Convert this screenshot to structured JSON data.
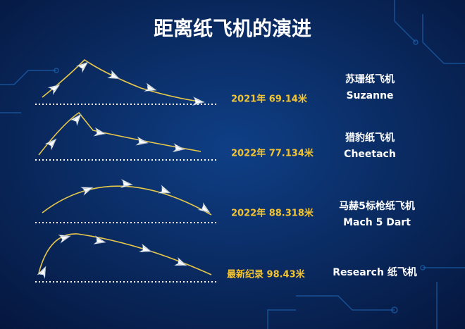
{
  "title": "距离纸飞机的演进",
  "items": [
    {
      "record": "2021年 69.14米",
      "name": "苏珊纸飞机",
      "name_en": "Suzanne"
    },
    {
      "record": "2022年 77.134米",
      "name": "猎豹纸飞机",
      "name_en": "Cheetach"
    },
    {
      "record": "2022年 88.318米",
      "name": "马赫5标枪纸飞机",
      "name_en": "Mach 5 Dart"
    },
    {
      "record": "最新纪录 98.43米",
      "name": "Research 纸飞机"
    }
  ]
}
